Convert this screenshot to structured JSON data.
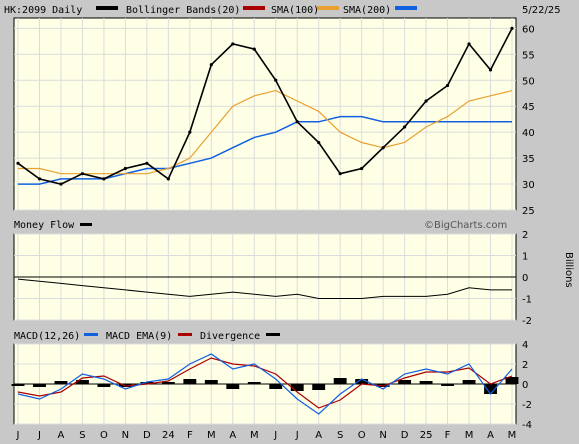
{
  "header": {
    "symbol": "HK:2099 Daily",
    "bollinger_label": "Bollinger Bands(20)",
    "sma100_label": "SMA(100)",
    "sma200_label": "SMA(200)",
    "date": "5/22/25"
  },
  "watermark": "©BigCharts.com",
  "colors": {
    "panel_bg": "#ffffe6",
    "grid": "#dcdcdc",
    "price": "#000000",
    "bollinger": "#aa0000",
    "sma100": "#e8a030",
    "sma200": "#1060e0",
    "macd": "#1060e0",
    "macd_ema": "#aa0000",
    "divergence": "#000000"
  },
  "money_flow": {
    "label": "Money Flow",
    "unit_label": "Billions"
  },
  "macd_panel": {
    "label": "MACD(12,26)",
    "ema_label": "MACD EMA(9)",
    "divergence_label": "Divergence"
  },
  "chart_data": [
    {
      "type": "line",
      "title": "HK:2099 Daily",
      "ylim": [
        25,
        62
      ],
      "yticks": [
        "60",
        "55",
        "50",
        "45",
        "40",
        "35",
        "30",
        "25"
      ],
      "x": [
        "J",
        "J",
        "A",
        "S",
        "O",
        "N",
        "D",
        "24",
        "F",
        "M",
        "A",
        "M",
        "J",
        "J",
        "A",
        "S",
        "O",
        "N",
        "D",
        "25",
        "F",
        "M",
        "A",
        "M"
      ],
      "series": [
        {
          "name": "Price",
          "values": [
            34,
            31,
            30,
            32,
            31,
            33,
            34,
            31,
            40,
            53,
            57,
            56,
            50,
            42,
            38,
            32,
            33,
            37,
            41,
            46,
            49,
            57,
            52,
            60
          ]
        },
        {
          "name": "SMA(100)",
          "values": [
            33,
            33,
            32,
            32,
            32,
            32,
            32,
            33,
            35,
            40,
            45,
            47,
            48,
            46,
            44,
            40,
            38,
            37,
            38,
            41,
            43,
            46,
            47,
            48
          ]
        },
        {
          "name": "SMA(200)",
          "values": [
            30,
            30,
            31,
            31,
            31,
            32,
            33,
            33,
            34,
            35,
            37,
            39,
            40,
            42,
            42,
            43,
            43,
            42,
            42,
            42,
            42,
            42,
            42,
            42
          ]
        }
      ]
    },
    {
      "type": "line",
      "title": "Money Flow",
      "ylabel": "Billions",
      "ylim": [
        -2,
        2
      ],
      "yticks": [
        "2",
        "1",
        "0",
        "-1",
        "-2"
      ],
      "series": [
        {
          "name": "Money Flow",
          "values": [
            -0.1,
            -0.2,
            -0.3,
            -0.4,
            -0.5,
            -0.6,
            -0.7,
            -0.8,
            -0.9,
            -0.8,
            -0.7,
            -0.8,
            -0.9,
            -0.8,
            -1.0,
            -1.0,
            -1.0,
            -0.9,
            -0.9,
            -0.9,
            -0.8,
            -0.5,
            -0.6,
            -0.6
          ]
        }
      ]
    },
    {
      "type": "line",
      "title": "MACD(12,26)",
      "ylim": [
        -4,
        4
      ],
      "yticks": [
        "4",
        "2",
        "0",
        "-2",
        "-4"
      ],
      "series": [
        {
          "name": "MACD(12,26)",
          "values": [
            -1.0,
            -1.5,
            -0.5,
            1.0,
            0.5,
            -0.5,
            0.2,
            0.5,
            2.0,
            3.0,
            1.5,
            2.0,
            0.5,
            -1.5,
            -3.0,
            -1.0,
            0.5,
            -0.5,
            1.0,
            1.5,
            1.0,
            2.0,
            -1.0,
            1.5
          ]
        },
        {
          "name": "MACD EMA(9)",
          "values": [
            -0.8,
            -1.2,
            -0.8,
            0.6,
            0.8,
            -0.2,
            0.0,
            0.3,
            1.5,
            2.6,
            2.0,
            1.8,
            1.0,
            -0.8,
            -2.4,
            -1.6,
            0.0,
            -0.2,
            0.6,
            1.2,
            1.2,
            1.6,
            0.0,
            0.8
          ]
        },
        {
          "name": "Divergence",
          "values": [
            -0.2,
            -0.3,
            0.3,
            0.4,
            -0.3,
            -0.3,
            0.2,
            0.2,
            0.5,
            0.4,
            -0.5,
            0.2,
            -0.5,
            -0.7,
            -0.6,
            0.6,
            0.5,
            -0.3,
            0.4,
            0.3,
            -0.2,
            0.4,
            -1.0,
            0.7
          ]
        }
      ]
    }
  ]
}
